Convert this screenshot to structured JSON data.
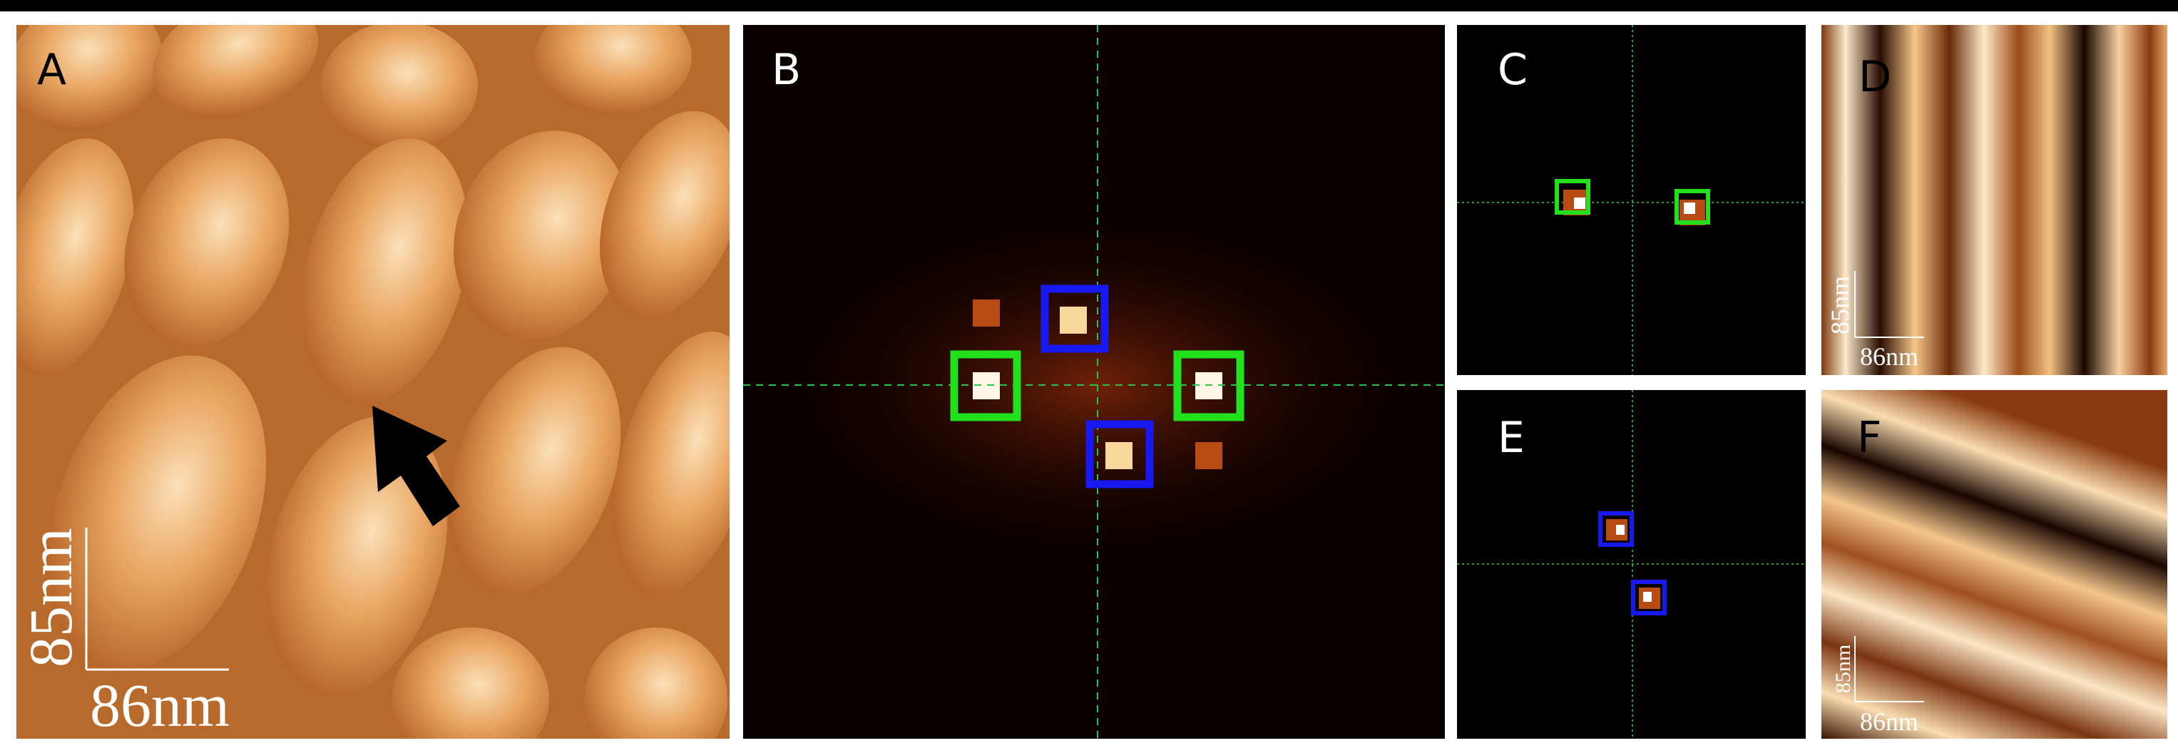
{
  "panels": [
    {
      "label": "A",
      "scale_bar": {
        "vertical": "85nm",
        "horizontal": "86nm"
      }
    },
    {
      "label": "B"
    },
    {
      "label": "C"
    },
    {
      "label": "D",
      "scale_bar": {
        "vertical": "85nm",
        "horizontal": "86nm"
      }
    },
    {
      "label": "E"
    },
    {
      "label": "F",
      "scale_bar": {
        "vertical": "85nm",
        "horizontal": "86nm"
      }
    }
  ]
}
